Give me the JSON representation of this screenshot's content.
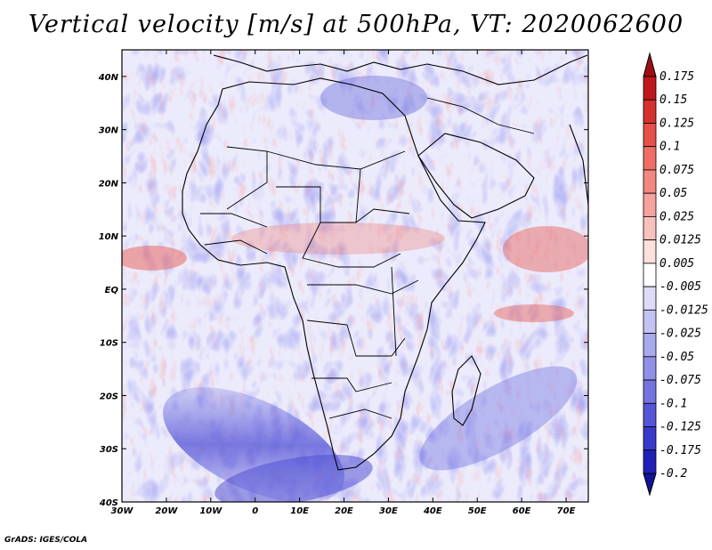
{
  "title": "Vertical velocity [m/s] at 500hPa, VT: 2020062600",
  "credit": "GrADS: IGES/COLA",
  "lon_labels": [
    "30W",
    "20W",
    "10W",
    "0",
    "10E",
    "20E",
    "30E",
    "40E",
    "50E",
    "60E",
    "70E"
  ],
  "lat_labels": [
    "40N",
    "30N",
    "20N",
    "10N",
    "EQ",
    "10S",
    "20S",
    "30S",
    "40S"
  ],
  "lon_range": [
    -30,
    75
  ],
  "lat_range": [
    -40,
    45
  ],
  "colorbar": {
    "levels": [
      "0.175",
      "0.15",
      "0.125",
      "0.1",
      "0.075",
      "0.05",
      "0.025",
      "0.0125",
      "0.005",
      "-0.005",
      "-0.0125",
      "-0.025",
      "-0.05",
      "-0.075",
      "-0.1",
      "-0.125",
      "-0.175",
      "-0.2"
    ],
    "colors": [
      "#9e0f14",
      "#c0171c",
      "#d6312f",
      "#e6504a",
      "#ef6d66",
      "#f3877f",
      "#f5a39c",
      "#f8c1bc",
      "#fbe0dd",
      "#ffffff",
      "#dcdcf8",
      "#c3c3f3",
      "#a9a9ee",
      "#9090e8",
      "#7474e1",
      "#5555d8",
      "#3838cc",
      "#2020b8",
      "#11119a"
    ]
  },
  "icons": {
    "coastline": "coastline-icon",
    "border": "country-border-icon"
  }
}
